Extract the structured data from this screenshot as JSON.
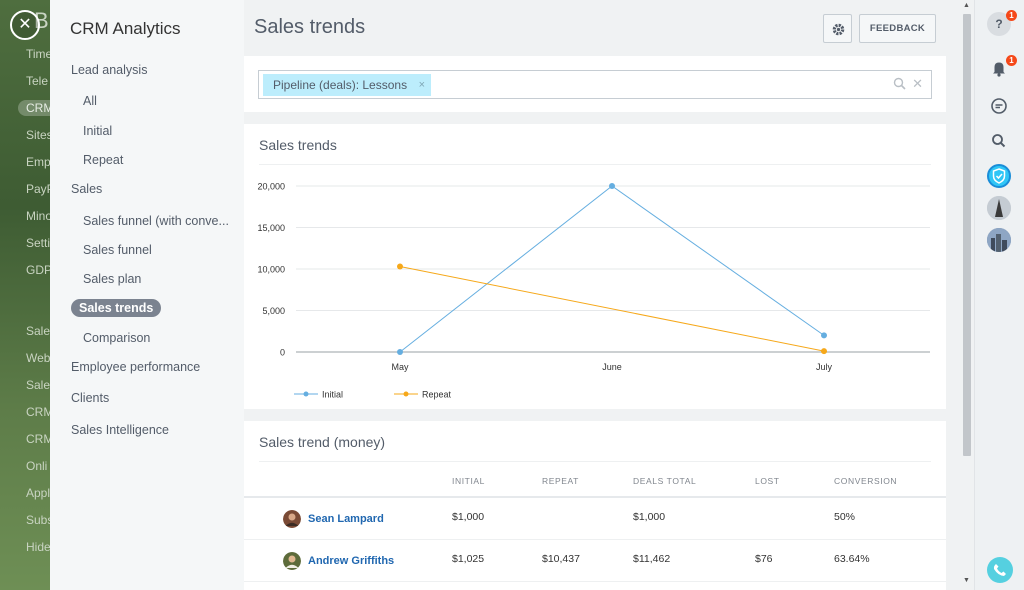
{
  "background_app": {
    "brand": "Bit",
    "items": [
      "Time",
      "Tele",
      "CRM",
      "Sites",
      "Emp",
      "PayP",
      "Mino",
      "Setti",
      "GDP",
      "Sale",
      "Web",
      "Sale",
      "CRM",
      "CRM",
      "Onli",
      "Appl",
      "Subs",
      "Hide"
    ],
    "active_index": 2
  },
  "nav": {
    "title": "CRM Analytics",
    "items": [
      {
        "label": "Lead analysis"
      },
      {
        "label": "All"
      },
      {
        "label": "Initial"
      },
      {
        "label": "Repeat"
      },
      {
        "label": "Sales"
      },
      {
        "label": "Sales funnel (with conve..."
      },
      {
        "label": "Sales funnel"
      },
      {
        "label": "Sales plan"
      },
      {
        "label": "Sales trends"
      },
      {
        "label": "Comparison"
      },
      {
        "label": "Employee performance"
      },
      {
        "label": "Clients"
      },
      {
        "label": "Sales Intelligence"
      }
    ]
  },
  "header": {
    "title": "Sales trends",
    "feedback_label": "FEEDBACK"
  },
  "filter": {
    "tag_label": "Pipeline (deals): Lessons",
    "tag_remove": "×",
    "clear": "✕"
  },
  "chart_card": {
    "title": "Sales trends"
  },
  "chart_data": {
    "type": "line",
    "title": "",
    "categories": [
      "May",
      "June",
      "July"
    ],
    "series": [
      {
        "name": "Initial",
        "values": [
          0,
          20000,
          2000
        ],
        "color": "#65aee0"
      },
      {
        "name": "Repeat",
        "values": [
          10300,
          null,
          100
        ],
        "color": "#f6a81a"
      }
    ],
    "ylim": [
      0,
      20000
    ],
    "yticks": [
      0,
      5000,
      10000,
      15000,
      20000
    ],
    "ytick_labels": [
      "0",
      "5,000",
      "10,000",
      "15,000",
      "20,000"
    ],
    "grid": true,
    "legend": "bottom-left"
  },
  "table_card": {
    "title": "Sales trend (money)",
    "columns": [
      "INITIAL",
      "REPEAT",
      "DEALS TOTAL",
      "LOST",
      "CONVERSION"
    ],
    "rows": [
      {
        "name": "Sean Lampard",
        "initial": "$1,000",
        "repeat": "",
        "total": "$1,000",
        "lost": "",
        "conversion": "50%"
      },
      {
        "name": "Andrew Griffiths",
        "initial": "$1,025",
        "repeat": "$10,437",
        "total": "$11,462",
        "lost": "$76",
        "conversion": "63.64%"
      }
    ]
  },
  "right_panel": {
    "help_badge": "1",
    "notif_badge": "1"
  },
  "colors": {
    "accent": "#2067b0",
    "tag_bg": "#bcedfc",
    "initial_series": "#65aee0",
    "repeat_series": "#f6a81a",
    "active_nav": "#7b8390"
  }
}
